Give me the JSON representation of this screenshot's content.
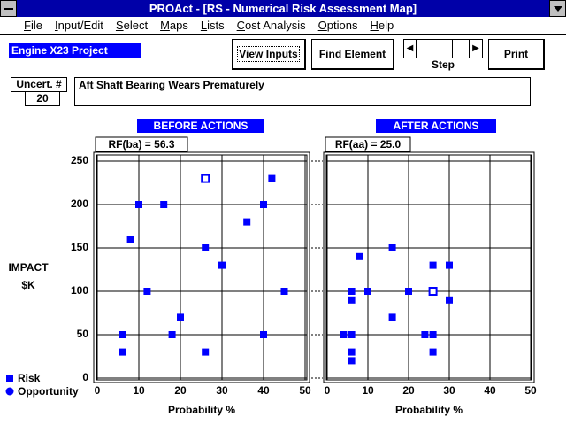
{
  "window": {
    "title": "PROAct - [RS - Numerical Risk Assessment Map]",
    "menu": [
      "File",
      "Input/Edit",
      "Select",
      "Maps",
      "Lists",
      "Cost Analysis",
      "Options",
      "Help"
    ]
  },
  "toolbar": {
    "project": "Engine X23 Project",
    "view_inputs": "View Inputs",
    "find_element": "Find Element",
    "step": "Step",
    "print": "Print"
  },
  "uncertainty": {
    "label": "Uncert. #",
    "number": 20,
    "description": "Aft Shaft Bearing Wears Prematurely"
  },
  "chart_data": [
    {
      "type": "scatter",
      "title": "BEFORE ACTIONS",
      "annotation": "RF(ba) = 56.3",
      "xlabel": "Probability %",
      "ylabel": "IMPACT $K",
      "xlim": [
        0,
        50
      ],
      "xticks": [
        0,
        10,
        20,
        30,
        40,
        50
      ],
      "ylim": [
        0,
        250
      ],
      "yticks": [
        0,
        50,
        100,
        150,
        200,
        250
      ],
      "show_yticklabels": true,
      "grid": true,
      "series": [
        {
          "name": "Risk",
          "color": "#0000ff",
          "marker": "square",
          "x": [
            42,
            10,
            16,
            40,
            36,
            8,
            26,
            30,
            12,
            45,
            20,
            6,
            18,
            40,
            6,
            26
          ],
          "values": [
            230,
            200,
            200,
            200,
            180,
            160,
            150,
            130,
            100,
            100,
            70,
            50,
            50,
            50,
            30,
            30
          ]
        },
        {
          "name": "Opportunity",
          "color": "#0000ff",
          "marker": "hollow-square",
          "x": [
            26
          ],
          "values": [
            230
          ]
        }
      ]
    },
    {
      "type": "scatter",
      "title": "AFTER ACTIONS",
      "annotation": "RF(aa) = 25.0",
      "xlabel": "Probability %",
      "xlim": [
        0,
        50
      ],
      "xticks": [
        0,
        10,
        20,
        30,
        40,
        50
      ],
      "ylim": [
        0,
        250
      ],
      "yticks": [
        0,
        50,
        100,
        150,
        200,
        250
      ],
      "show_yticklabels": false,
      "grid": true,
      "series": [
        {
          "color": "#0000ff",
          "marker": "square",
          "x": [
            16,
            8,
            26,
            30,
            6,
            10,
            20,
            6,
            30,
            16,
            4,
            6,
            24,
            26,
            6,
            26,
            6
          ],
          "values": [
            150,
            140,
            130,
            130,
            100,
            100,
            100,
            90,
            90,
            70,
            50,
            50,
            50,
            50,
            30,
            30,
            20
          ]
        },
        {
          "color": "#0000ff",
          "marker": "hollow-square",
          "x": [
            26
          ],
          "values": [
            100
          ]
        }
      ]
    }
  ]
}
